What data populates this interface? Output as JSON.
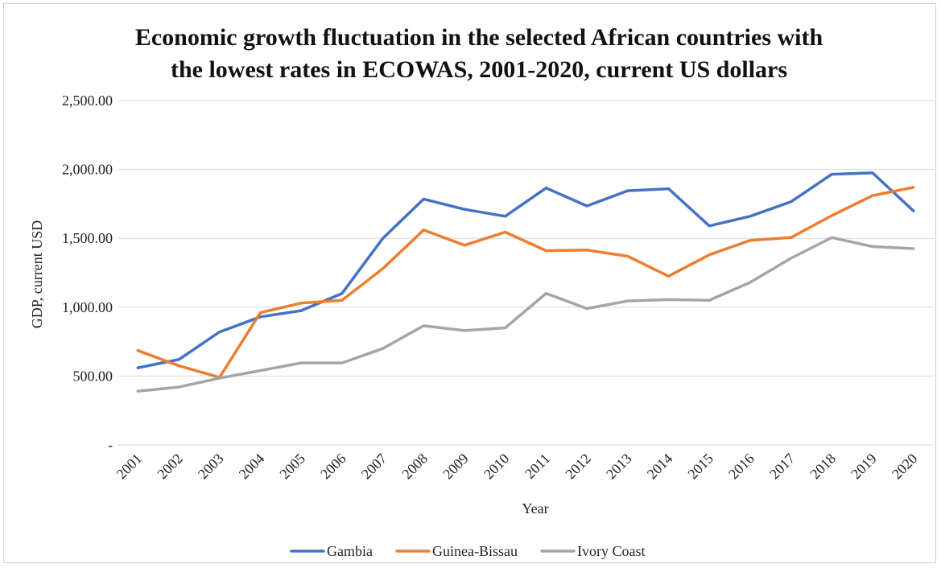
{
  "chart_data": {
    "type": "line",
    "title_lines": [
      "Economic growth fluctuation in the selected African countries with",
      "the lowest rates in ECOWAS, 2001-2020, current US dollars"
    ],
    "xlabel": "Year",
    "ylabel": "GDP, current USD",
    "ylim": [
      0,
      2500
    ],
    "y_ticks": [
      {
        "value": 0,
        "label": "-"
      },
      {
        "value": 500,
        "label": "500.00"
      },
      {
        "value": 1000,
        "label": "1,000.00"
      },
      {
        "value": 1500,
        "label": "1,500.00"
      },
      {
        "value": 2000,
        "label": "2,000.00"
      },
      {
        "value": 2500,
        "label": "2,500.00"
      }
    ],
    "grid": true,
    "legend_position": "bottom",
    "categories": [
      "2001",
      "2002",
      "2003",
      "2004",
      "2005",
      "2006",
      "2007",
      "2008",
      "2009",
      "2010",
      "2011",
      "2012",
      "2013",
      "2014",
      "2015",
      "2016",
      "2017",
      "2018",
      "2019",
      "2020"
    ],
    "series": [
      {
        "name": "Gambia",
        "color": "#4472C4",
        "values": [
          560,
          620,
          820,
          930,
          975,
          1100,
          1500,
          1785,
          1710,
          1660,
          1865,
          1735,
          1845,
          1860,
          1590,
          1660,
          1765,
          1965,
          1975,
          1700
        ]
      },
      {
        "name": "Guinea-Bissau",
        "color": "#ED7D31",
        "values": [
          685,
          575,
          490,
          960,
          1030,
          1050,
          1280,
          1560,
          1450,
          1545,
          1410,
          1415,
          1370,
          1225,
          1380,
          1485,
          1505,
          1665,
          1810,
          1870
        ]
      },
      {
        "name": "Ivory Coast",
        "color": "#A5A5A5",
        "values": [
          390,
          420,
          485,
          540,
          595,
          595,
          700,
          865,
          830,
          850,
          1100,
          990,
          1045,
          1055,
          1050,
          1180,
          1355,
          1505,
          1440,
          1425
        ]
      }
    ]
  }
}
